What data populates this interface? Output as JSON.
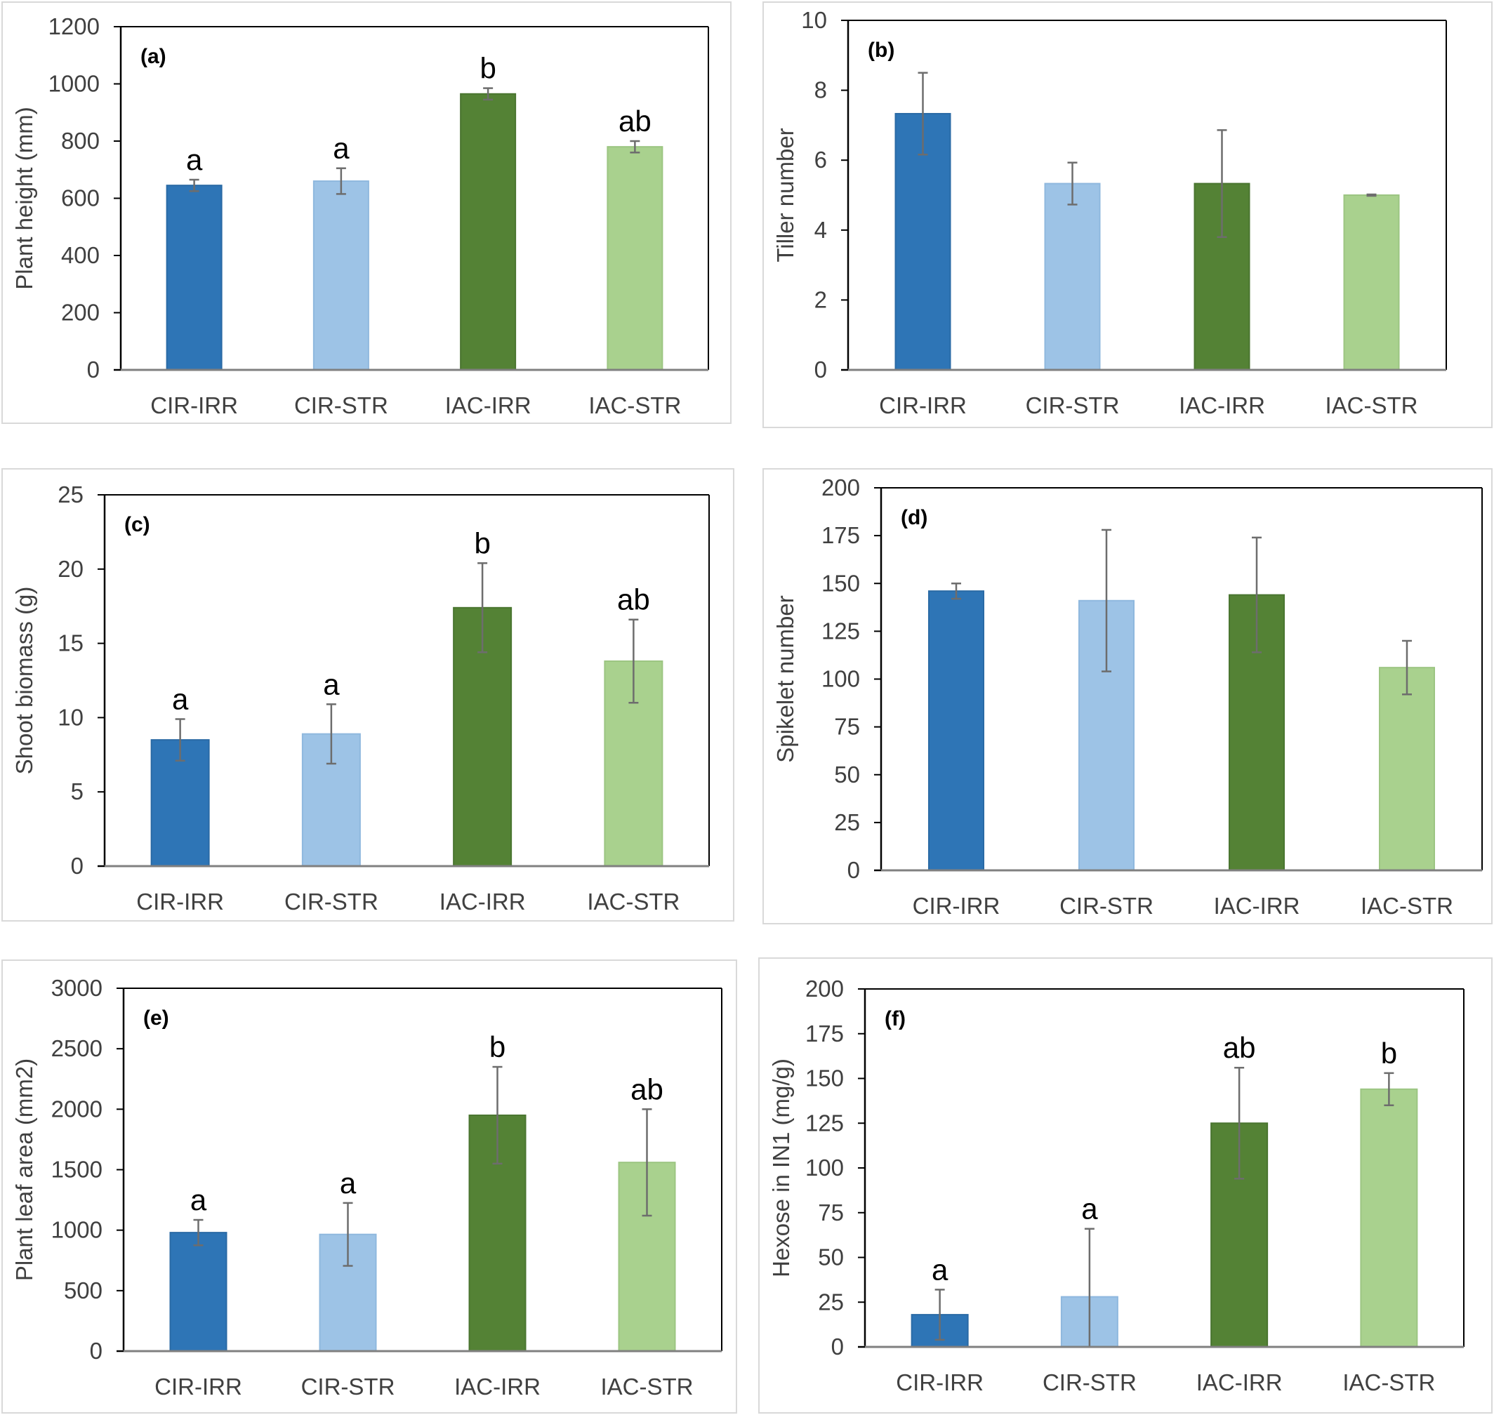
{
  "colors": {
    "cir_irr": "#2e75b6",
    "cir_str": "#9dc3e6",
    "iac_irr": "#548235",
    "iac_str": "#a9d18e",
    "error_bar": "#6d6d6d",
    "axis": "#000000",
    "tick_text": "#404040",
    "panel_border": "#d9d9d9"
  },
  "chart_data": [
    {
      "type": "bar",
      "panel_label": "(a)",
      "title": "",
      "xlabel": "",
      "ylabel": "Plant height (mm)",
      "categories": [
        "CIR-IRR",
        "CIR-STR",
        "IAC-IRR",
        "IAC-STR"
      ],
      "values": [
        645,
        660,
        965,
        780
      ],
      "errors": [
        20,
        45,
        20,
        20
      ],
      "significance": [
        "a",
        "a",
        "b",
        "ab"
      ],
      "ylim": [
        0,
        1200
      ],
      "yticks": [
        "0",
        "200",
        "400",
        "600",
        "800",
        "1000",
        "1200"
      ],
      "grid": false,
      "legend": "none"
    },
    {
      "type": "bar",
      "panel_label": "(b)",
      "title": "",
      "xlabel": "",
      "ylabel": "Tiller number",
      "categories": [
        "CIR-IRR",
        "CIR-STR",
        "IAC-IRR",
        "IAC-STR"
      ],
      "values": [
        7.33,
        5.33,
        5.33,
        5.0
      ],
      "errors": [
        1.17,
        0.6,
        1.53,
        0.02
      ],
      "significance": [
        "",
        "",
        "",
        ""
      ],
      "ylim": [
        0,
        10
      ],
      "yticks": [
        "0",
        "2",
        "4",
        "6",
        "8",
        "10"
      ],
      "grid": false,
      "legend": "none"
    },
    {
      "type": "bar",
      "panel_label": "(c)",
      "title": "",
      "xlabel": "",
      "ylabel": "Shoot biomass (g)",
      "categories": [
        "CIR-IRR",
        "CIR-STR",
        "IAC-IRR",
        "IAC-STR"
      ],
      "values": [
        8.5,
        8.9,
        17.4,
        13.8
      ],
      "errors": [
        1.4,
        2.0,
        3.0,
        2.8
      ],
      "significance": [
        "a",
        "a",
        "b",
        "ab"
      ],
      "ylim": [
        0,
        25
      ],
      "yticks": [
        "0",
        "5",
        "10",
        "15",
        "20",
        "25"
      ],
      "grid": false,
      "legend": "none"
    },
    {
      "type": "bar",
      "panel_label": "(d)",
      "title": "",
      "xlabel": "",
      "ylabel": "Spikelet number",
      "categories": [
        "CIR-IRR",
        "CIR-STR",
        "IAC-IRR",
        "IAC-STR"
      ],
      "values": [
        146,
        141,
        144,
        106
      ],
      "errors": [
        4,
        37,
        30,
        14
      ],
      "significance": [
        "",
        "",
        "",
        ""
      ],
      "ylim": [
        0,
        200
      ],
      "yticks": [
        "0",
        "25",
        "50",
        "75",
        "100",
        "125",
        "150",
        "175",
        "200"
      ],
      "grid": false,
      "legend": "none"
    },
    {
      "type": "bar",
      "panel_label": "(e)",
      "title": "",
      "xlabel": "",
      "ylabel": "Plant leaf area (mm2)",
      "categories": [
        "CIR-IRR",
        "CIR-STR",
        "IAC-IRR",
        "IAC-STR"
      ],
      "values": [
        980,
        965,
        1950,
        1560
      ],
      "errors": [
        105,
        260,
        400,
        440
      ],
      "significance": [
        "a",
        "a",
        "b",
        "ab"
      ],
      "ylim": [
        0,
        3000
      ],
      "yticks": [
        "0",
        "500",
        "1000",
        "1500",
        "2000",
        "2500",
        "3000"
      ],
      "grid": false,
      "legend": "none"
    },
    {
      "type": "bar",
      "panel_label": "(f)",
      "title": "",
      "xlabel": "",
      "ylabel": "Hexose in IN1 (mg/g)",
      "categories": [
        "CIR-IRR",
        "CIR-STR",
        "IAC-IRR",
        "IAC-STR"
      ],
      "values": [
        18,
        28,
        125,
        144
      ],
      "errors": [
        14,
        38,
        31,
        9
      ],
      "significance": [
        "a",
        "a",
        "ab",
        "b"
      ],
      "ylim": [
        0,
        200
      ],
      "yticks": [
        "0",
        "25",
        "50",
        "75",
        "100",
        "125",
        "150",
        "175",
        "200"
      ],
      "grid": false,
      "legend": "none"
    }
  ]
}
